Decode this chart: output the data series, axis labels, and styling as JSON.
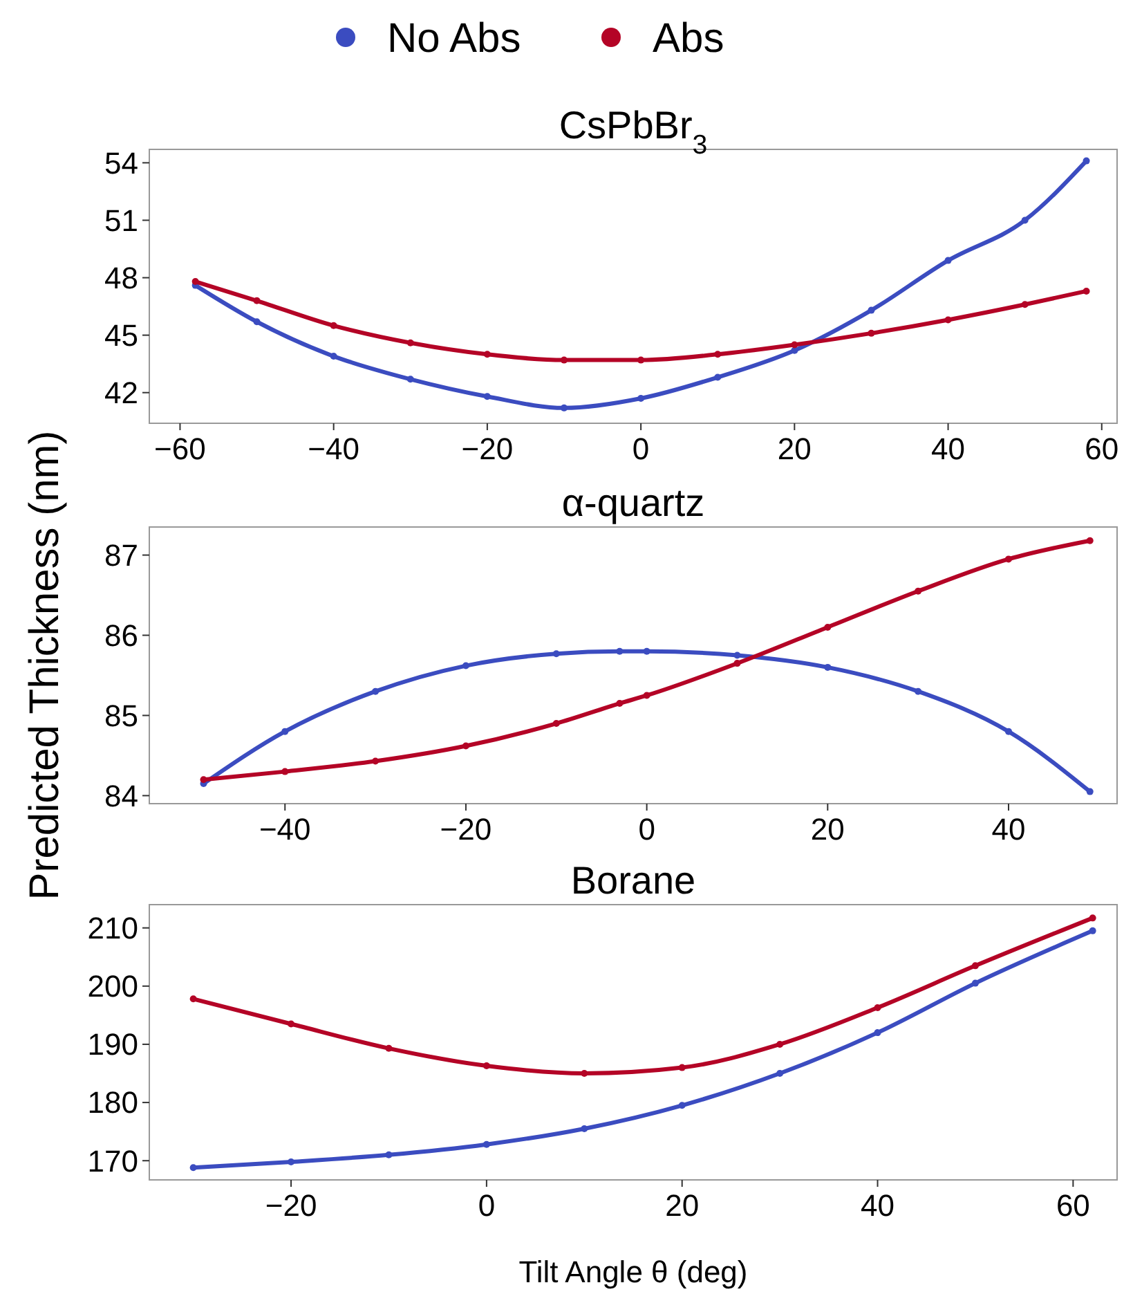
{
  "chart_data": [
    {
      "type": "line",
      "title": "CsPbBr$_{3}$",
      "legend": "top",
      "marker": "circle",
      "line_style": "solid",
      "grid": false,
      "x": [
        -58,
        -50,
        -40,
        -30,
        -20,
        -10,
        0,
        10,
        20,
        30,
        40,
        50,
        58
      ],
      "series": [
        {
          "name": "No Abs",
          "color": "#3b4cc0",
          "values": [
            47.6,
            45.7,
            43.9,
            42.7,
            41.8,
            41.2,
            41.7,
            42.8,
            44.2,
            46.3,
            48.9,
            51.0,
            54.1
          ]
        },
        {
          "name": "Abs",
          "color": "#b40426",
          "values": [
            47.8,
            46.8,
            45.5,
            44.6,
            44.0,
            43.7,
            43.7,
            44.0,
            44.5,
            45.1,
            45.8,
            46.6,
            47.3
          ]
        }
      ],
      "xlim": [
        -64,
        62
      ],
      "xticks": [
        {
          "value": -60,
          "label": "−60"
        },
        {
          "value": -40,
          "label": "−40"
        },
        {
          "value": -20,
          "label": "−20"
        },
        0,
        20,
        40,
        60
      ],
      "ylim": [
        40.4,
        54.7
      ],
      "yticks": [
        42,
        45,
        48,
        51,
        54
      ]
    },
    {
      "type": "line",
      "title": "α-quartz",
      "ylabel": "Predicted Thickness (nm)",
      "marker": "circle",
      "line_style": "solid",
      "grid": false,
      "x": [
        -49,
        -40,
        -30,
        -20,
        -10,
        -3,
        0,
        10,
        20,
        30,
        40,
        49
      ],
      "series": [
        {
          "color": "#3b4cc0",
          "values": [
            84.15,
            84.8,
            85.3,
            85.62,
            85.77,
            85.8,
            85.8,
            85.75,
            85.6,
            85.3,
            84.8,
            84.05
          ]
        },
        {
          "color": "#b40426",
          "values": [
            84.2,
            84.3,
            84.43,
            84.62,
            84.9,
            85.15,
            85.25,
            85.65,
            86.1,
            86.55,
            86.95,
            87.18
          ]
        }
      ],
      "xlim": [
        -55,
        52
      ],
      "xticks": [
        {
          "value": -40,
          "label": "−40"
        },
        {
          "value": -20,
          "label": "−20"
        },
        0,
        20,
        40
      ],
      "ylim": [
        83.9,
        87.35
      ],
      "yticks": [
        84,
        85,
        86,
        87
      ]
    },
    {
      "type": "line",
      "title": "Borane",
      "xlabel": "Tilt Angle θ (deg)",
      "marker": "circle",
      "line_style": "solid",
      "grid": false,
      "x": [
        -30,
        -20,
        -10,
        0,
        10,
        20,
        30,
        40,
        50,
        62
      ],
      "series": [
        {
          "color": "#3b4cc0",
          "values": [
            168.8,
            169.8,
            171,
            172.8,
            175.5,
            179.5,
            185,
            192,
            200.5,
            209.5
          ]
        },
        {
          "color": "#b40426",
          "values": [
            197.8,
            193.5,
            189.3,
            186.3,
            185,
            186,
            190,
            196.3,
            203.5,
            211.7
          ]
        }
      ],
      "xlim": [
        -34.5,
        64.5
      ],
      "xticks": [
        {
          "value": -20,
          "label": "−20"
        },
        0,
        20,
        40,
        60
      ],
      "ylim": [
        166.7,
        214
      ],
      "yticks": [
        170,
        180,
        190,
        200,
        210
      ]
    }
  ]
}
